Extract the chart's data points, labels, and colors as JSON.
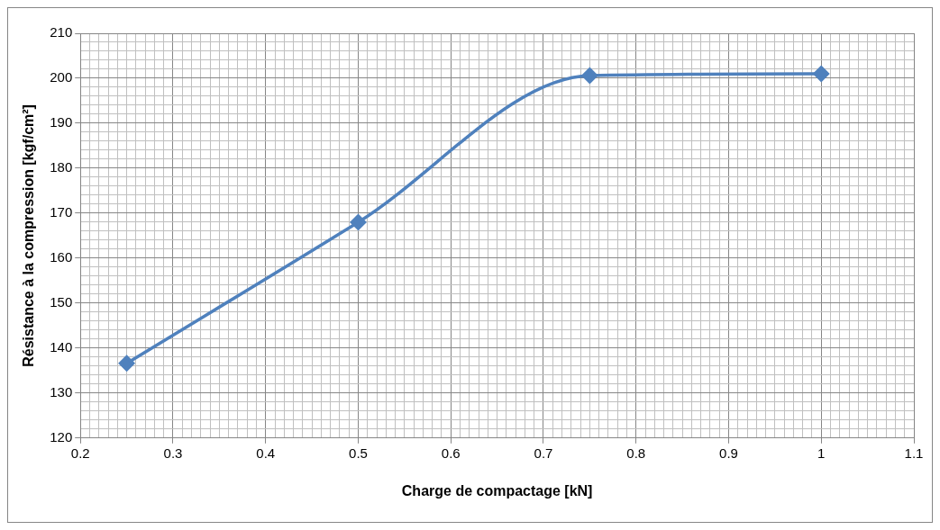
{
  "chart_data": {
    "type": "line",
    "xlabel": "Charge de compactage [kN]",
    "ylabel": "Résistance à la compression [kgf/cm²]",
    "x": [
      0.25,
      0.5,
      0.75,
      1
    ],
    "series": [
      {
        "color": "#4f81bd",
        "values": [
          136.6,
          168,
          200.6,
          201
        ]
      }
    ],
    "xlim": [
      0.2,
      1.1
    ],
    "ylim": [
      120,
      210
    ],
    "xticks": [
      0.2,
      {
        "value": 0.21,
        "label": null
      },
      {
        "value": 0.22,
        "label": null
      },
      {
        "value": 0.23,
        "label": null
      },
      {
        "value": 0.24,
        "label": null
      },
      {
        "value": 0.25,
        "label": null
      },
      {
        "value": 0.26,
        "label": null
      },
      {
        "value": 0.27,
        "label": null
      },
      {
        "value": 0.28,
        "label": null
      },
      {
        "value": 0.29,
        "label": null
      },
      0.3,
      {
        "value": 0.31,
        "label": null
      },
      {
        "value": 0.32,
        "label": null
      },
      {
        "value": 0.33,
        "label": null
      },
      {
        "value": 0.34,
        "label": null
      },
      {
        "value": 0.35,
        "label": null
      },
      {
        "value": 0.36,
        "label": null
      },
      {
        "value": 0.37,
        "label": null
      },
      {
        "value": 0.38,
        "label": null
      },
      {
        "value": 0.39,
        "label": null
      },
      0.4,
      {
        "value": 0.41,
        "label": null
      },
      {
        "value": 0.42,
        "label": null
      },
      {
        "value": 0.43,
        "label": null
      },
      {
        "value": 0.44,
        "label": null
      },
      {
        "value": 0.45,
        "label": null
      },
      {
        "value": 0.46,
        "label": null
      },
      {
        "value": 0.47,
        "label": null
      },
      {
        "value": 0.48,
        "label": null
      },
      {
        "value": 0.49,
        "label": null
      },
      0.5,
      {
        "value": 0.51,
        "label": null
      },
      {
        "value": 0.52,
        "label": null
      },
      {
        "value": 0.53,
        "label": null
      },
      {
        "value": 0.54,
        "label": null
      },
      {
        "value": 0.55,
        "label": null
      },
      {
        "value": 0.56,
        "label": null
      },
      {
        "value": 0.57,
        "label": null
      },
      {
        "value": 0.58,
        "label": null
      },
      {
        "value": 0.59,
        "label": null
      },
      0.6,
      {
        "value": 0.61,
        "label": null
      },
      {
        "value": 0.62,
        "label": null
      },
      {
        "value": 0.63,
        "label": null
      },
      {
        "value": 0.64,
        "label": null
      },
      {
        "value": 0.65,
        "label": null
      },
      {
        "value": 0.66,
        "label": null
      },
      {
        "value": 0.67,
        "label": null
      },
      {
        "value": 0.68,
        "label": null
      },
      {
        "value": 0.69,
        "label": null
      },
      0.7,
      {
        "value": 0.71,
        "label": null
      },
      {
        "value": 0.72,
        "label": null
      },
      {
        "value": 0.73,
        "label": null
      },
      {
        "value": 0.74,
        "label": null
      },
      {
        "value": 0.75,
        "label": null
      },
      {
        "value": 0.76,
        "label": null
      },
      {
        "value": 0.77,
        "label": null
      },
      {
        "value": 0.78,
        "label": null
      },
      {
        "value": 0.79,
        "label": null
      },
      0.8,
      {
        "value": 0.81,
        "label": null
      },
      {
        "value": 0.82,
        "label": null
      },
      {
        "value": 0.83,
        "label": null
      },
      {
        "value": 0.84,
        "label": null
      },
      {
        "value": 0.85,
        "label": null
      },
      {
        "value": 0.86,
        "label": null
      },
      {
        "value": 0.87,
        "label": null
      },
      {
        "value": 0.88,
        "label": null
      },
      {
        "value": 0.89,
        "label": null
      },
      0.9,
      {
        "value": 0.91,
        "label": null
      },
      {
        "value": 0.92,
        "label": null
      },
      {
        "value": 0.93,
        "label": null
      },
      {
        "value": 0.94,
        "label": null
      },
      {
        "value": 0.95,
        "label": null
      },
      {
        "value": 0.96,
        "label": null
      },
      {
        "value": 0.97,
        "label": null
      },
      {
        "value": 0.98,
        "label": null
      },
      {
        "value": 0.99,
        "label": null
      },
      1,
      {
        "value": 1.01,
        "label": null
      },
      {
        "value": 1.02,
        "label": null
      },
      {
        "value": 1.03,
        "label": null
      },
      {
        "value": 1.04,
        "label": null
      },
      {
        "value": 1.05,
        "label": null
      },
      {
        "value": 1.06,
        "label": null
      },
      {
        "value": 1.07,
        "label": null
      },
      {
        "value": 1.08,
        "label": null
      },
      {
        "value": 1.09,
        "label": null
      },
      1.1
    ],
    "yticks": [
      120,
      {
        "value": 122,
        "label": null
      },
      {
        "value": 124,
        "label": null
      },
      {
        "value": 126,
        "label": null
      },
      {
        "value": 128,
        "label": null
      },
      130,
      {
        "value": 132,
        "label": null
      },
      {
        "value": 134,
        "label": null
      },
      {
        "value": 136,
        "label": null
      },
      {
        "value": 138,
        "label": null
      },
      140,
      {
        "value": 142,
        "label": null
      },
      {
        "value": 144,
        "label": null
      },
      {
        "value": 146,
        "label": null
      },
      {
        "value": 148,
        "label": null
      },
      150,
      {
        "value": 152,
        "label": null
      },
      {
        "value": 154,
        "label": null
      },
      {
        "value": 156,
        "label": null
      },
      {
        "value": 158,
        "label": null
      },
      160,
      {
        "value": 162,
        "label": null
      },
      {
        "value": 164,
        "label": null
      },
      {
        "value": 166,
        "label": null
      },
      {
        "value": 168,
        "label": null
      },
      170,
      {
        "value": 172,
        "label": null
      },
      {
        "value": 174,
        "label": null
      },
      {
        "value": 176,
        "label": null
      },
      {
        "value": 178,
        "label": null
      },
      180,
      {
        "value": 182,
        "label": null
      },
      {
        "value": 184,
        "label": null
      },
      {
        "value": 186,
        "label": null
      },
      {
        "value": 188,
        "label": null
      },
      190,
      {
        "value": 192,
        "label": null
      },
      {
        "value": 194,
        "label": null
      },
      {
        "value": 196,
        "label": null
      },
      {
        "value": 198,
        "label": null
      },
      200,
      {
        "value": 202,
        "label": null
      },
      {
        "value": 204,
        "label": null
      },
      {
        "value": 206,
        "label": null
      },
      {
        "value": 208,
        "label": null
      },
      210
    ],
    "grid": true,
    "marker": "diamond",
    "line_style": "solid"
  }
}
